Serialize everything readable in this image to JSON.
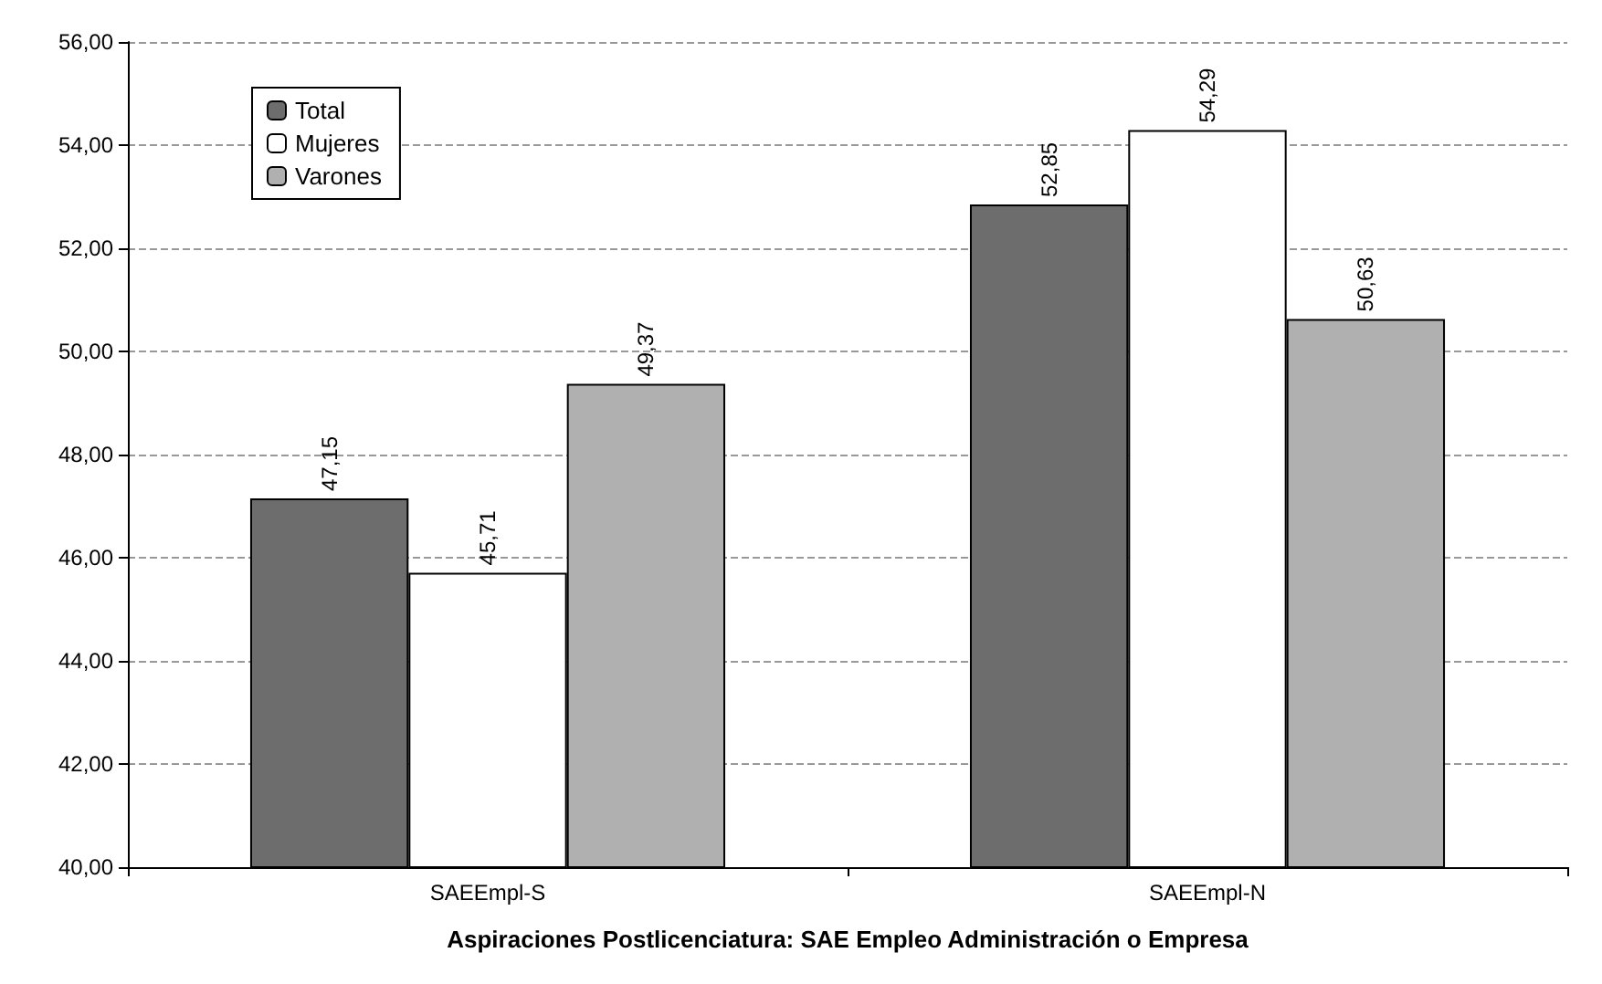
{
  "chart_data": {
    "type": "bar",
    "xlabel": "Aspiraciones Postlicenciatura: SAE Empleo Administración o Empresa",
    "categories": [
      "SAEEmpl-S",
      "SAEEmpl-N"
    ],
    "series": [
      {
        "name": "Total",
        "color": "#6d6d6d",
        "values": [
          47.15,
          52.85
        ],
        "value_labels": [
          "47,15",
          "52,85"
        ]
      },
      {
        "name": "Mujeres",
        "color": "#ffffff",
        "values": [
          45.71,
          54.29
        ],
        "value_labels": [
          "45,71",
          "54,29"
        ]
      },
      {
        "name": "Varones",
        "color": "#b0b0b0",
        "values": [
          49.37,
          50.63
        ],
        "value_labels": [
          "49,37",
          "50,63"
        ]
      }
    ],
    "ylim": [
      40,
      56
    ],
    "yticks": [
      {
        "value": 40,
        "label": "40,00"
      },
      {
        "value": 42,
        "label": "42,00"
      },
      {
        "value": 44,
        "label": "44,00"
      },
      {
        "value": 46,
        "label": "46,00"
      },
      {
        "value": 48,
        "label": "48,00"
      },
      {
        "value": 50,
        "label": "50,00"
      },
      {
        "value": 52,
        "label": "52,00"
      },
      {
        "value": 54,
        "label": "54,00"
      },
      {
        "value": 56,
        "label": "56,00"
      }
    ],
    "grid": "y",
    "legend": "top left"
  }
}
